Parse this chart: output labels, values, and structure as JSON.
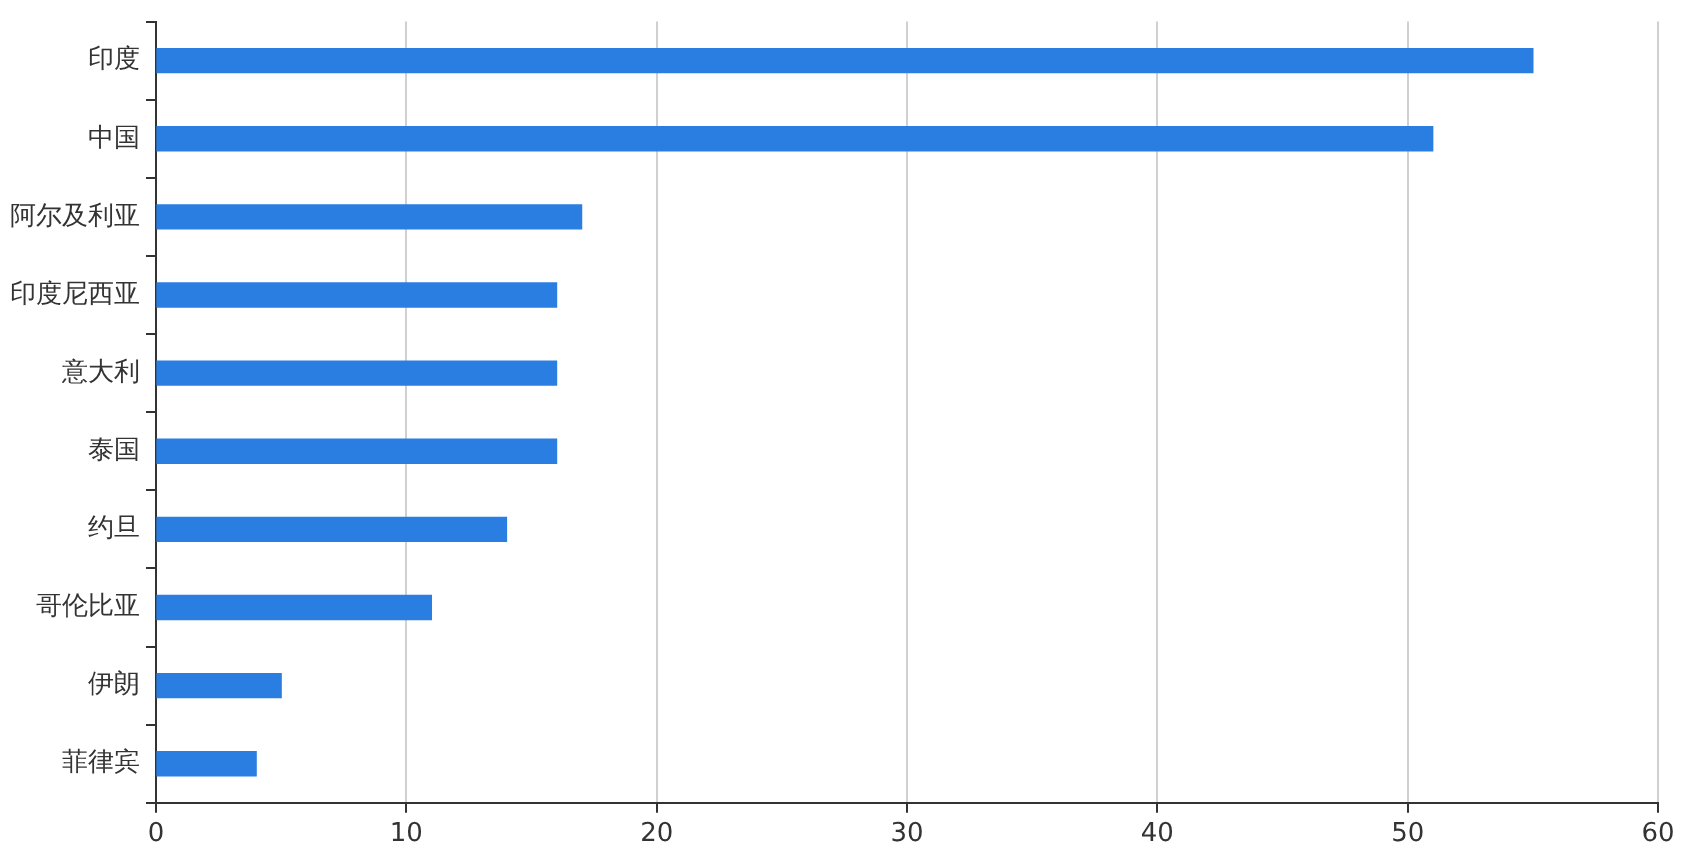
{
  "chart_data": {
    "type": "bar",
    "orientation": "horizontal",
    "categories": [
      "印度",
      "中国",
      "阿尔及利亚",
      "印度尼西亚",
      "意大利",
      "泰国",
      "约旦",
      "哥伦比亚",
      "伊朗",
      "菲律宾"
    ],
    "values": [
      55,
      51,
      17,
      16,
      16,
      16,
      14,
      11,
      5,
      4
    ],
    "color": "#2a7de1",
    "xlim": [
      0,
      60
    ],
    "xticks": [
      0,
      10,
      20,
      30,
      40,
      50,
      60
    ],
    "grid": "x",
    "legend": false
  }
}
